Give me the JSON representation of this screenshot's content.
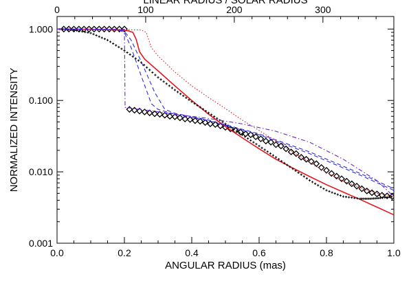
{
  "chart_data": {
    "type": "line",
    "title": "",
    "xlabel": "ANGULAR RADIUS (mas)",
    "ylabel": "NORMALIZED INTENSITY",
    "top_xlabel": "LINEAR RADIUS / SOLAR RADIUS",
    "xlim": [
      0.0,
      1.0
    ],
    "ylim": [
      0.001,
      1.5
    ],
    "yscale": "log",
    "top_xlim": [
      0,
      380
    ],
    "x_ticks": [
      "0.0",
      "0.2",
      "0.4",
      "0.6",
      "0.8",
      "1.0"
    ],
    "y_ticks": [
      "0.001",
      "0.010",
      "0.100",
      "1.000"
    ],
    "top_ticks": [
      "0",
      "100",
      "200",
      "300"
    ],
    "grid": false,
    "series": [
      {
        "style": "diamonds",
        "color": "#000000",
        "x": [
          0.02,
          0.035,
          0.05,
          0.065,
          0.08,
          0.095,
          0.11,
          0.125,
          0.14,
          0.155,
          0.17,
          0.185,
          0.2,
          0.215,
          0.23,
          0.245,
          0.26,
          0.275,
          0.29,
          0.305,
          0.32,
          0.335,
          0.35,
          0.365,
          0.38,
          0.395,
          0.41,
          0.425,
          0.44,
          0.455,
          0.47,
          0.485,
          0.5,
          0.515,
          0.53,
          0.545,
          0.56,
          0.575,
          0.59,
          0.605,
          0.62,
          0.635,
          0.65,
          0.665,
          0.68,
          0.695,
          0.71,
          0.725,
          0.74,
          0.755,
          0.77,
          0.785,
          0.8,
          0.815,
          0.83,
          0.845,
          0.86,
          0.875,
          0.89,
          0.905,
          0.92,
          0.935,
          0.95,
          0.965,
          0.98,
          0.995
        ],
        "y": [
          1.0,
          1.0,
          1.0,
          1.0,
          1.0,
          1.0,
          1.0,
          1.0,
          1.0,
          1.0,
          1.0,
          1.0,
          1.0,
          0.075,
          0.073,
          0.071,
          0.069,
          0.067,
          0.065,
          0.064,
          0.062,
          0.06,
          0.059,
          0.057,
          0.055,
          0.054,
          0.052,
          0.051,
          0.049,
          0.047,
          0.046,
          0.044,
          0.042,
          0.04,
          0.038,
          0.036,
          0.034,
          0.033,
          0.031,
          0.029,
          0.027,
          0.026,
          0.024,
          0.023,
          0.021,
          0.019,
          0.018,
          0.016,
          0.015,
          0.014,
          0.013,
          0.0115,
          0.0105,
          0.0095,
          0.0087,
          0.008,
          0.0074,
          0.0068,
          0.0063,
          0.0058,
          0.0054,
          0.0051,
          0.0049,
          0.0047,
          0.0046,
          0.0045
        ]
      },
      {
        "style": "solid",
        "color": "#e8141c",
        "x": [
          0.0,
          0.1,
          0.18,
          0.21,
          0.225,
          0.235,
          0.245,
          0.26,
          0.3,
          0.35,
          0.4,
          0.45,
          0.5,
          0.55,
          0.6,
          0.65,
          0.7,
          0.75,
          0.8,
          0.85,
          0.9,
          0.95,
          1.0
        ],
        "y": [
          1.0,
          0.99,
          0.97,
          0.95,
          0.9,
          0.72,
          0.48,
          0.38,
          0.26,
          0.16,
          0.1,
          0.064,
          0.043,
          0.03,
          0.021,
          0.015,
          0.0113,
          0.0086,
          0.0066,
          0.0052,
          0.0041,
          0.0032,
          0.0025
        ]
      },
      {
        "style": "dotted",
        "color": "#e8141c",
        "x": [
          0.0,
          0.15,
          0.25,
          0.265,
          0.28,
          0.3,
          0.35,
          0.4,
          0.45,
          0.5,
          0.55,
          0.6,
          0.65,
          0.7,
          0.75,
          0.8,
          0.85,
          0.9,
          0.95,
          1.0
        ],
        "y": [
          1.0,
          0.99,
          0.97,
          0.9,
          0.55,
          0.42,
          0.25,
          0.16,
          0.11,
          0.077,
          0.053,
          0.038,
          0.027,
          0.019,
          0.0135,
          0.0098,
          0.0074,
          0.006,
          0.005,
          0.0045
        ]
      },
      {
        "style": "plus",
        "color": "#000000",
        "x": [
          0.0,
          0.05,
          0.1,
          0.15,
          0.2,
          0.25,
          0.3,
          0.35,
          0.4,
          0.45,
          0.5,
          0.55,
          0.6,
          0.65,
          0.7,
          0.75,
          0.8,
          0.85,
          0.9,
          0.93,
          0.96,
          1.0
        ],
        "y": [
          1.0,
          0.97,
          0.88,
          0.7,
          0.5,
          0.34,
          0.21,
          0.14,
          0.096,
          0.067,
          0.047,
          0.033,
          0.023,
          0.016,
          0.011,
          0.0076,
          0.0055,
          0.0045,
          0.0042,
          0.0042,
          0.0043,
          0.0045
        ]
      },
      {
        "style": "dashed",
        "color": "#2b2bdc",
        "x": [
          0.0,
          0.18,
          0.2,
          0.22,
          0.25,
          0.28,
          0.3,
          0.35,
          0.45,
          0.6,
          0.75,
          0.9,
          1.0
        ],
        "y": [
          1.0,
          0.98,
          0.9,
          0.55,
          0.22,
          0.09,
          0.075,
          0.064,
          0.052,
          0.033,
          0.018,
          0.009,
          0.0055
        ]
      },
      {
        "style": "dashed",
        "color": "#2b2bdc",
        "x": [
          0.0,
          0.18,
          0.2,
          0.22,
          0.25,
          0.29,
          0.32,
          0.35,
          0.45,
          0.6,
          0.75,
          0.9,
          1.0
        ],
        "y": [
          1.0,
          0.98,
          0.93,
          0.7,
          0.35,
          0.13,
          0.075,
          0.066,
          0.053,
          0.034,
          0.019,
          0.0095,
          0.0058
        ]
      },
      {
        "style": "dashdot",
        "color": "#6a1fd1",
        "x": [
          0.0,
          0.2,
          0.201,
          0.202,
          0.25,
          0.35,
          0.45,
          0.55,
          0.65,
          0.75,
          0.85,
          0.95,
          1.0
        ],
        "y": [
          1.0,
          0.99,
          0.3,
          0.08,
          0.075,
          0.064,
          0.056,
          0.047,
          0.037,
          0.026,
          0.015,
          0.0075,
          0.0045
        ]
      }
    ]
  }
}
